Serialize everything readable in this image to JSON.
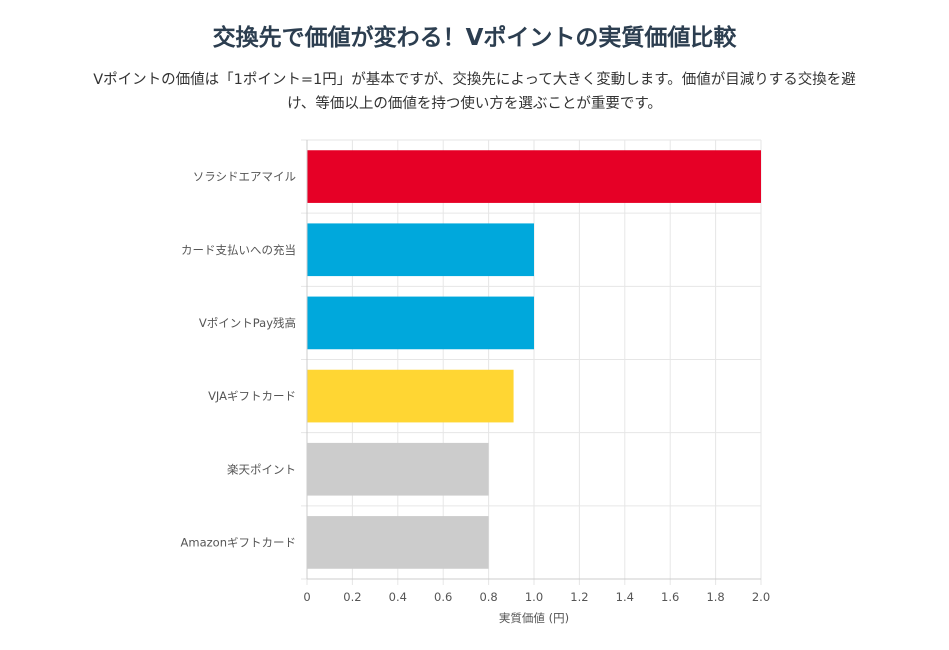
{
  "header": {
    "title": "交換先で価値が変わる！Vポイントの実質価値比較",
    "description": "Vポイントの価値は「1ポイント=1円」が基本ですが、交換先によって大きく変動します。価値が目減りする交換を避け、等価以上の価値を持つ使い方を選ぶことが重要です。"
  },
  "chart_data": {
    "type": "bar",
    "orientation": "horizontal",
    "categories": [
      "ソラシドエアマイル",
      "カード支払いへの充当",
      "VポイントPay残高",
      "VJAギフトカード",
      "楽天ポイント",
      "Amazonギフトカード"
    ],
    "values": [
      2.0,
      1.0,
      1.0,
      0.91,
      0.8,
      0.8
    ],
    "colors": [
      "#e60026",
      "#00a8dc",
      "#00a8dc",
      "#ffd633",
      "#cccccc",
      "#cccccc"
    ],
    "xlabel": "実質価値 (円)",
    "ylabel": "",
    "xlim": [
      0,
      2.0
    ],
    "xticks": [
      "0",
      "0.2",
      "0.4",
      "0.6",
      "0.8",
      "1.0",
      "1.2",
      "1.4",
      "1.6",
      "1.8",
      "2.0"
    ],
    "grid": true,
    "legend": "none"
  }
}
